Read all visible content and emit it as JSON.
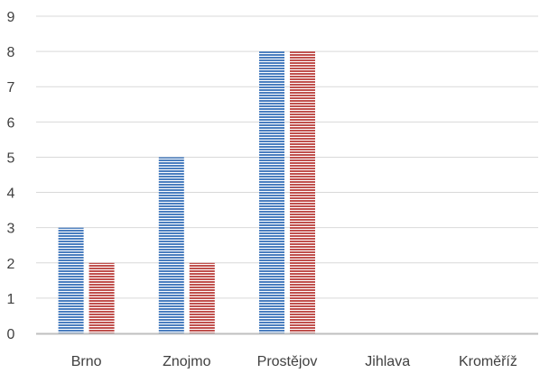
{
  "chart_data": {
    "type": "bar",
    "categories": [
      "Brno",
      "Znojmo",
      "Prostějov",
      "Jihlava",
      "Kroměříž"
    ],
    "series": [
      {
        "values": [
          3,
          5,
          8,
          0,
          0
        ],
        "color": "#4a7ebf"
      },
      {
        "values": [
          2,
          2,
          8,
          0,
          0
        ],
        "color": "#c0504d"
      }
    ],
    "ylim": [
      0,
      9
    ],
    "yticks": [
      "0",
      "1",
      "2",
      "3",
      "4",
      "5",
      "6",
      "7",
      "8",
      "9"
    ],
    "grid": true,
    "bar_pattern": "horizontal-stripes",
    "title": "",
    "xlabel": "",
    "ylabel": ""
  }
}
